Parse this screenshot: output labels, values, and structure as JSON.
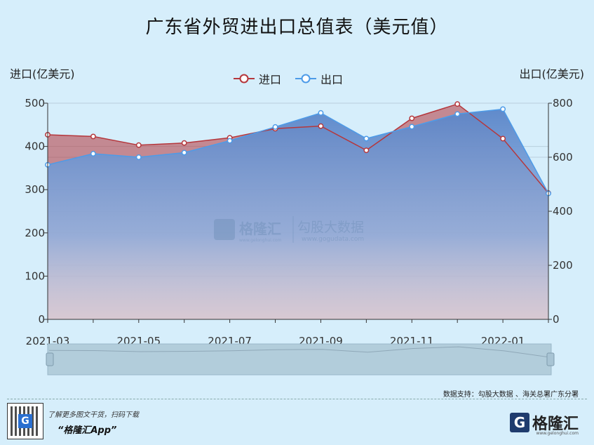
{
  "title": "广东省外贸进出口总值表（美元值）",
  "y_left_label": "进口(亿美元)",
  "y_right_label": "出口(亿美元)",
  "legend": [
    {
      "name": "进口",
      "color": "#b5373c"
    },
    {
      "name": "出口",
      "color": "#4d9be8"
    }
  ],
  "watermark": {
    "brand": "格隆汇",
    "brand_url": "www.gelonghui.com",
    "data_brand": "勾股大数据",
    "data_url": "www.gogudata.com"
  },
  "source_text": "数据支持：勾股大数据 、海关总署广东分署",
  "promo_line1": "了解更多图文干货，扫码下载",
  "promo_line2": "“格隆汇App”",
  "footer_brand": "格隆汇",
  "footer_brand_sub": "www.gelonghui.com",
  "qr_badge": "G",
  "footer_brand_mark": "G",
  "chart_data": {
    "type": "area",
    "x": [
      "2021-03",
      "2021-04",
      "2021-05",
      "2021-06",
      "2021-07",
      "2021-08",
      "2021-09",
      "2021-10",
      "2021-11",
      "2021-12",
      "2022-01",
      "2022-02"
    ],
    "x_tick_labels": [
      "2021-03",
      "2021-05",
      "2021-07",
      "2021-09",
      "2021-11",
      "2022-01"
    ],
    "series": [
      {
        "name": "进口",
        "axis": "left",
        "color": "#b5373c",
        "values": [
          427,
          423,
          403,
          408,
          420,
          441,
          447,
          391,
          465,
          498,
          418,
          292
        ]
      },
      {
        "name": "出口",
        "axis": "right",
        "color": "#4d9be8",
        "values": [
          572,
          613,
          600,
          617,
          661,
          712,
          764,
          669,
          713,
          760,
          778,
          466
        ]
      }
    ],
    "y_left": {
      "min": 0,
      "max": 500,
      "ticks": [
        0,
        100,
        200,
        300,
        400,
        500
      ]
    },
    "y_right": {
      "min": 0,
      "max": 800,
      "ticks": [
        0,
        200,
        400,
        600,
        800
      ]
    },
    "grid": true,
    "legend_position": "top-center",
    "datazoom": true
  }
}
